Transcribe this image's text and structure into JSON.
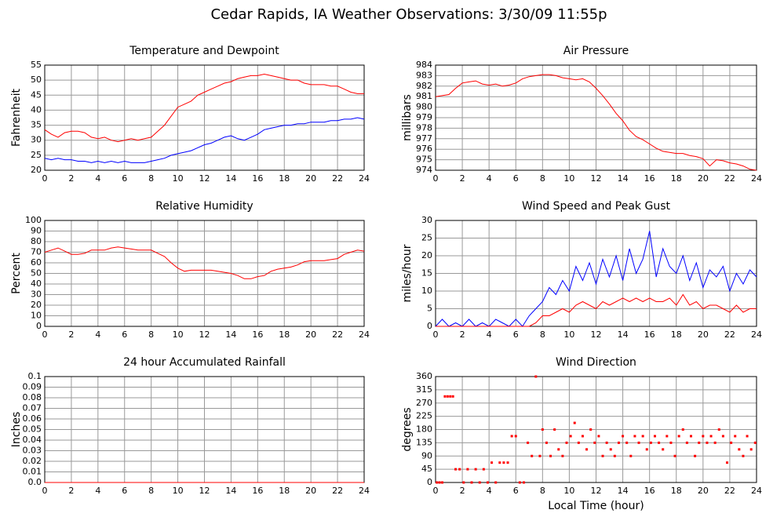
{
  "title": "Cedar Rapids, IA Weather Observations: 3/30/09 11:55p",
  "chart_data": [
    {
      "type": "line",
      "title": "Temperature and Dewpoint",
      "ylabel": "Fahrenheit",
      "grid": true,
      "xlim": [
        0,
        24
      ],
      "xticks": [
        0,
        2,
        4,
        6,
        8,
        10,
        12,
        14,
        16,
        18,
        20,
        22,
        24
      ],
      "ylim": [
        20,
        55
      ],
      "yticks": [
        20,
        25,
        30,
        35,
        40,
        45,
        50,
        55
      ],
      "x": [
        0,
        0.5,
        1,
        1.5,
        2,
        2.5,
        3,
        3.5,
        4,
        4.5,
        5,
        5.5,
        6,
        6.5,
        7,
        7.5,
        8,
        8.5,
        9,
        9.5,
        10,
        10.5,
        11,
        11.5,
        12,
        12.5,
        13,
        13.5,
        14,
        14.5,
        15,
        15.5,
        16,
        16.5,
        17,
        17.5,
        18,
        18.5,
        19,
        19.5,
        20,
        20.5,
        21,
        21.5,
        22,
        22.5,
        23,
        23.5,
        24
      ],
      "series": [
        {
          "color": "#ff0000",
          "values": [
            33.5,
            32,
            31,
            32.5,
            33,
            33,
            32.5,
            31,
            30.5,
            31,
            30,
            29.5,
            30,
            30.5,
            30,
            30.5,
            31,
            33,
            35,
            38,
            41,
            42,
            43,
            45,
            46,
            47,
            48,
            49,
            49.5,
            50.5,
            51,
            51.5,
            51.5,
            52,
            51.5,
            51,
            50.5,
            50,
            50,
            49,
            48.5,
            48.5,
            48.5,
            48,
            48,
            47,
            46,
            45.5,
            45.5
          ]
        },
        {
          "color": "#0000ff",
          "values": [
            24,
            23.5,
            24,
            23.5,
            23.5,
            23,
            23,
            22.5,
            23,
            22.5,
            23,
            22.5,
            23,
            22.5,
            22.5,
            22.5,
            23,
            23.5,
            24,
            25,
            25.5,
            26,
            26.5,
            27.5,
            28.5,
            29,
            30,
            31,
            31.5,
            30.5,
            30,
            31,
            32,
            33.5,
            34,
            34.5,
            35,
            35,
            35.5,
            35.5,
            36,
            36,
            36,
            36.5,
            36.5,
            37,
            37,
            37.5,
            37
          ]
        }
      ]
    },
    {
      "type": "line",
      "title": "Air Pressure",
      "ylabel": "millibars",
      "grid": true,
      "xlim": [
        0,
        24
      ],
      "xticks": [
        0,
        2,
        4,
        6,
        8,
        10,
        12,
        14,
        16,
        18,
        20,
        22,
        24
      ],
      "ylim": [
        974,
        984
      ],
      "yticks": [
        974,
        975,
        976,
        977,
        978,
        979,
        980,
        981,
        982,
        983,
        984
      ],
      "x": [
        0,
        0.5,
        1,
        1.5,
        2,
        2.5,
        3,
        3.5,
        4,
        4.5,
        5,
        5.5,
        6,
        6.5,
        7,
        7.5,
        8,
        8.5,
        9,
        9.5,
        10,
        10.5,
        11,
        11.5,
        12,
        12.5,
        13,
        13.5,
        14,
        14.5,
        15,
        15.5,
        16,
        16.5,
        17,
        17.5,
        18,
        18.5,
        19,
        19.5,
        20,
        20.5,
        21,
        21.5,
        22,
        22.5,
        23,
        23.5,
        24
      ],
      "series": [
        {
          "color": "#ff0000",
          "values": [
            981,
            981.1,
            981.2,
            981.8,
            982.3,
            982.4,
            982.5,
            982.2,
            982.1,
            982.2,
            982,
            982.1,
            982.3,
            982.7,
            982.9,
            983,
            983.1,
            983.1,
            983,
            982.8,
            982.7,
            982.6,
            982.7,
            982.4,
            981.8,
            981.1,
            980.3,
            979.4,
            978.7,
            977.8,
            977.2,
            976.9,
            976.5,
            976.1,
            975.8,
            975.7,
            975.6,
            975.6,
            975.4,
            975.3,
            975.1,
            974.4,
            975,
            974.9,
            974.7,
            974.6,
            974.4,
            974.1,
            974
          ]
        }
      ]
    },
    {
      "type": "line",
      "title": "Relative Humidity",
      "ylabel": "Percent",
      "grid": true,
      "xlim": [
        0,
        24
      ],
      "xticks": [
        0,
        2,
        4,
        6,
        8,
        10,
        12,
        14,
        16,
        18,
        20,
        22,
        24
      ],
      "ylim": [
        0,
        100
      ],
      "yticks": [
        0,
        10,
        20,
        30,
        40,
        50,
        60,
        70,
        80,
        90,
        100
      ],
      "x": [
        0,
        0.5,
        1,
        1.5,
        2,
        2.5,
        3,
        3.5,
        4,
        4.5,
        5,
        5.5,
        6,
        6.5,
        7,
        7.5,
        8,
        8.5,
        9,
        9.5,
        10,
        10.5,
        11,
        11.5,
        12,
        12.5,
        13,
        13.5,
        14,
        14.5,
        15,
        15.5,
        16,
        16.5,
        17,
        17.5,
        18,
        18.5,
        19,
        19.5,
        20,
        20.5,
        21,
        21.5,
        22,
        22.5,
        23,
        23.5,
        24
      ],
      "series": [
        {
          "color": "#ff0000",
          "values": [
            70,
            72,
            74,
            71,
            68,
            68,
            69,
            72,
            72,
            72,
            74,
            75,
            74,
            73,
            72,
            72,
            72,
            69,
            66,
            60,
            55,
            52,
            53,
            53,
            53,
            53,
            52,
            51,
            50,
            48,
            45,
            45,
            47,
            48,
            52,
            54,
            55,
            56,
            58,
            61,
            62,
            62,
            62,
            63,
            64,
            68,
            70,
            72,
            71
          ]
        }
      ]
    },
    {
      "type": "line",
      "title": "Wind Speed and Peak Gust",
      "ylabel": "miles/hour",
      "grid": true,
      "xlim": [
        0,
        24
      ],
      "xticks": [
        0,
        2,
        4,
        6,
        8,
        10,
        12,
        14,
        16,
        18,
        20,
        22,
        24
      ],
      "ylim": [
        0,
        30
      ],
      "yticks": [
        0,
        5,
        10,
        15,
        20,
        25,
        30
      ],
      "x": [
        0,
        0.5,
        1,
        1.5,
        2,
        2.5,
        3,
        3.5,
        4,
        4.5,
        5,
        5.5,
        6,
        6.5,
        7,
        7.5,
        8,
        8.5,
        9,
        9.5,
        10,
        10.5,
        11,
        11.5,
        12,
        12.5,
        13,
        13.5,
        14,
        14.5,
        15,
        15.5,
        16,
        16.5,
        17,
        17.5,
        18,
        18.5,
        19,
        19.5,
        20,
        20.5,
        21,
        21.5,
        22,
        22.5,
        23,
        23.5,
        24
      ],
      "series": [
        {
          "color": "#0000ff",
          "values": [
            0,
            2,
            0,
            1,
            0,
            2,
            0,
            1,
            0,
            2,
            1,
            0,
            2,
            0,
            3,
            5,
            7,
            11,
            9,
            13,
            10,
            17,
            13,
            18,
            12,
            19,
            14,
            20,
            13,
            22,
            15,
            19,
            27,
            14,
            22,
            17,
            15,
            20,
            13,
            18,
            11,
            16,
            14,
            17,
            10,
            15,
            12,
            16,
            14
          ]
        },
        {
          "color": "#ff0000",
          "values": [
            0,
            0,
            0,
            0,
            0,
            0,
            0,
            0,
            0,
            0,
            0,
            0,
            0,
            0,
            0,
            1,
            3,
            3,
            4,
            5,
            4,
            6,
            7,
            6,
            5,
            7,
            6,
            7,
            8,
            7,
            8,
            7,
            8,
            7,
            7,
            8,
            6,
            9,
            6,
            7,
            5,
            6,
            6,
            5,
            4,
            6,
            4,
            5,
            5
          ]
        }
      ]
    },
    {
      "type": "line",
      "title": "24 hour Accumulated Rainfall",
      "ylabel": "Inches",
      "grid": true,
      "xlim": [
        0,
        24
      ],
      "xticks": [
        0,
        2,
        4,
        6,
        8,
        10,
        12,
        14,
        16,
        18,
        20,
        22,
        24
      ],
      "ylim": [
        0,
        0.1
      ],
      "yticks": [
        {
          "value": 0,
          "label": "0.0"
        },
        0.01,
        0.02,
        0.03,
        0.04,
        0.05,
        0.06,
        0.07,
        0.08,
        0.09,
        0.1
      ],
      "x": [
        0,
        24
      ],
      "series": [
        {
          "color": "#ff0000",
          "values": [
            0,
            0
          ]
        }
      ]
    },
    {
      "type": "scatter",
      "title": "Wind Direction",
      "ylabel": "degrees",
      "xlabel": "Local Time (hour)",
      "grid": true,
      "xlim": [
        0,
        24
      ],
      "xticks": [
        0,
        2,
        4,
        6,
        8,
        10,
        12,
        14,
        16,
        18,
        20,
        22,
        24
      ],
      "ylim": [
        0,
        360
      ],
      "yticks": [
        0,
        45,
        90,
        135,
        180,
        225,
        270,
        315,
        360
      ],
      "series": [
        {
          "color": "#ff0000",
          "x": [
            0.1,
            0.3,
            0.5,
            0.7,
            0.9,
            1.1,
            1.3,
            1.5,
            1.8,
            2.1,
            2.4,
            2.7,
            3.0,
            3.3,
            3.6,
            3.9,
            4.2,
            4.5,
            4.8,
            5.1,
            5.4,
            5.7,
            6.0,
            6.3,
            6.6,
            6.9,
            7.2,
            7.5,
            7.8,
            8.0,
            8.3,
            8.6,
            8.9,
            9.2,
            9.5,
            9.8,
            10.1,
            10.4,
            10.7,
            11.0,
            11.3,
            11.6,
            11.9,
            12.2,
            12.5,
            12.8,
            13.1,
            13.4,
            13.7,
            14.0,
            14.3,
            14.6,
            14.9,
            15.2,
            15.5,
            15.8,
            16.1,
            16.4,
            16.7,
            17.0,
            17.3,
            17.6,
            17.9,
            18.2,
            18.5,
            18.8,
            19.1,
            19.4,
            19.7,
            20.0,
            20.3,
            20.6,
            20.9,
            21.2,
            21.5,
            21.8,
            22.1,
            22.4,
            22.7,
            23.0,
            23.3,
            23.6,
            23.9
          ],
          "values": [
            0,
            0,
            0,
            292.5,
            292.5,
            292.5,
            292.5,
            45,
            45,
            0,
            45,
            0,
            45,
            0,
            45,
            0,
            67.5,
            0,
            67.5,
            67.5,
            67.5,
            157.5,
            157.5,
            0,
            0,
            135,
            90,
            360,
            90,
            180,
            135,
            90,
            180,
            112.5,
            90,
            135,
            157.5,
            202.5,
            135,
            157.5,
            112.5,
            180,
            135,
            157.5,
            90,
            135,
            112.5,
            90,
            135,
            157.5,
            135,
            90,
            157.5,
            135,
            157.5,
            112.5,
            135,
            157.5,
            135,
            112.5,
            157.5,
            135,
            90,
            157.5,
            180,
            135,
            157.5,
            90,
            135,
            157.5,
            135,
            157.5,
            135,
            180,
            157.5,
            67.5,
            135,
            157.5,
            112.5,
            90,
            157.5,
            112.5,
            135
          ]
        }
      ]
    }
  ]
}
